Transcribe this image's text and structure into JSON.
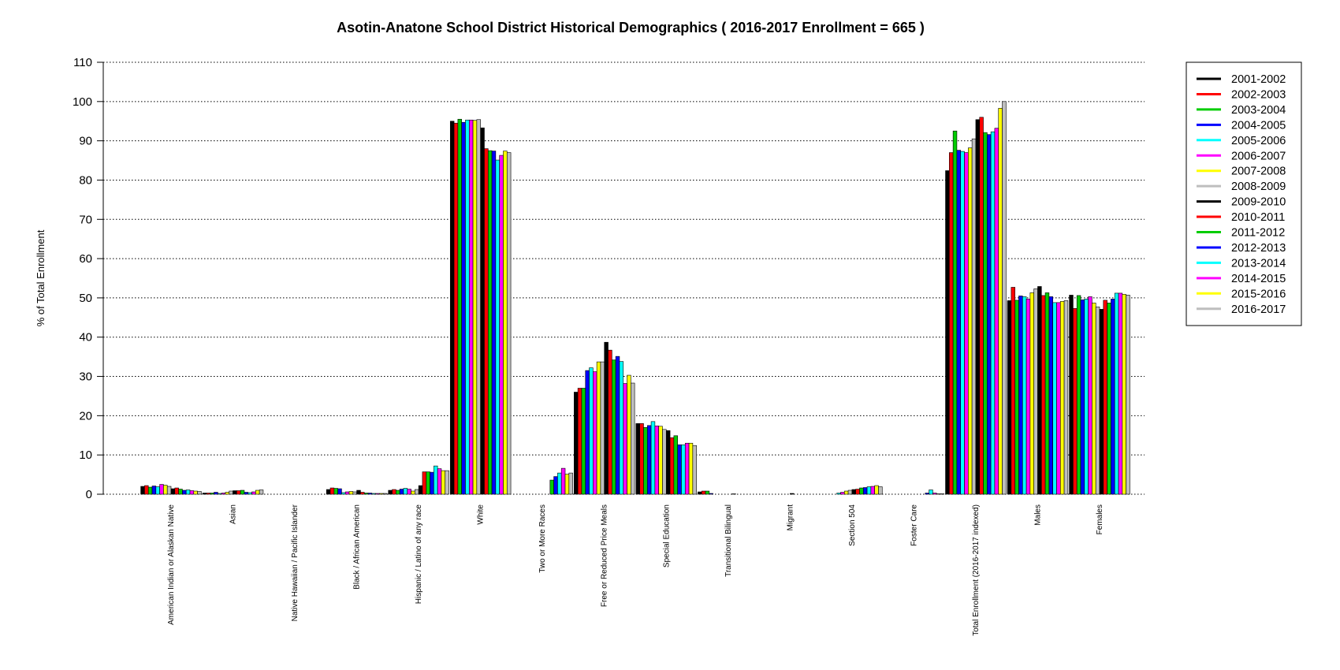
{
  "chart_data": {
    "type": "bar",
    "title": "Asotin-Anatone School District Historical Demographics  ( 2016-2017 Enrollment =  665 )",
    "xlabel": "",
    "ylabel": "% of Total Enrollment",
    "ylim": [
      0,
      110
    ],
    "yticks": [
      "0",
      "10",
      "20",
      "30",
      "40",
      "50",
      "60",
      "70",
      "80",
      "90",
      "100",
      "110"
    ],
    "grid": "horizontal dotted",
    "legend": "top-right",
    "categories": [
      "American Indian or Alaskan Native",
      "Asian",
      "Native Hawaiian / Pacific Islander",
      "Black / African American",
      "Hispanic / Latino of any race",
      "White",
      "Two or More Races",
      "Free or Reduced Price Meals",
      "Special Education",
      "Transitional Bilingual",
      "Migrant",
      "Section 504",
      "Foster Care",
      "Total Enrollment (2016-2017 indexed)",
      "Males",
      "Females"
    ],
    "series": [
      {
        "name": "2001-2002",
        "color": "#000000",
        "values": [
          2.0,
          0.3,
          0,
          1.2,
          1.0,
          95.0,
          0,
          26.0,
          18.0,
          0.6,
          0,
          0,
          0,
          82.4,
          49.3,
          50.7
        ]
      },
      {
        "name": "2002-2003",
        "color": "#ff0000",
        "values": [
          2.2,
          0.3,
          0,
          1.6,
          1.2,
          94.5,
          0,
          27.0,
          18.0,
          0.8,
          0,
          0,
          0,
          87.0,
          52.7,
          47.3
        ]
      },
      {
        "name": "2003-2004",
        "color": "#00cd00",
        "values": [
          1.8,
          0.3,
          0,
          1.5,
          1.0,
          95.5,
          0,
          27.0,
          17.0,
          0.8,
          0,
          0,
          0,
          92.5,
          49.4,
          50.6
        ]
      },
      {
        "name": "2004-2005",
        "color": "#0000ff",
        "values": [
          2.1,
          0.5,
          0,
          1.4,
          1.3,
          94.7,
          0,
          31.5,
          17.5,
          0.2,
          0,
          0,
          0,
          87.6,
          50.5,
          49.5
        ]
      },
      {
        "name": "2005-2006",
        "color": "#00ffff",
        "values": [
          1.9,
          0.2,
          0,
          0.4,
          1.5,
          95.3,
          0,
          32.2,
          18.5,
          0,
          0,
          0.3,
          0,
          87.3,
          50.3,
          49.7
        ]
      },
      {
        "name": "2006-2007",
        "color": "#ff00ff",
        "values": [
          2.5,
          0.3,
          0,
          0.6,
          1.3,
          95.3,
          0,
          31.2,
          17.4,
          0,
          0,
          0.5,
          0,
          87.0,
          49.7,
          50.3
        ]
      },
      {
        "name": "2007-2008",
        "color": "#ffff00",
        "values": [
          2.3,
          0.5,
          0,
          0.7,
          0.8,
          95.2,
          0,
          33.7,
          17.3,
          0,
          0,
          0.8,
          0,
          88.2,
          51.3,
          48.7
        ]
      },
      {
        "name": "2008-2009",
        "color": "#bebebe",
        "values": [
          2.0,
          0.8,
          0,
          0.6,
          1.2,
          95.4,
          0,
          33.7,
          16.5,
          0,
          0,
          1.0,
          0,
          90.5,
          52.3,
          47.7
        ]
      },
      {
        "name": "2009-2010",
        "color": "#000000",
        "values": [
          1.4,
          0.9,
          0,
          1.0,
          2.2,
          93.3,
          0,
          38.7,
          16.2,
          0,
          0.2,
          1.2,
          0,
          95.4,
          52.9,
          47.1
        ]
      },
      {
        "name": "2010-2011",
        "color": "#ff0000",
        "values": [
          1.6,
          0.9,
          0,
          0.5,
          5.7,
          88.0,
          0,
          36.7,
          14.4,
          0.1,
          0,
          1.3,
          0,
          96.0,
          50.6,
          49.4
        ]
      },
      {
        "name": "2011-2012",
        "color": "#00cd00",
        "values": [
          1.3,
          1.0,
          0,
          0.3,
          5.7,
          87.5,
          3.6,
          34.2,
          14.9,
          0,
          0,
          1.6,
          0,
          92.1,
          51.3,
          48.7
        ]
      },
      {
        "name": "2012-2013",
        "color": "#0000ff",
        "values": [
          1.0,
          0.5,
          0,
          0.3,
          5.6,
          87.4,
          4.5,
          35.1,
          12.6,
          0,
          0,
          1.7,
          0.3,
          91.6,
          50.3,
          49.7
        ]
      },
      {
        "name": "2013-2014",
        "color": "#00ffff",
        "values": [
          1.1,
          0.4,
          0,
          0.2,
          7.2,
          85.1,
          5.4,
          33.8,
          12.6,
          0,
          0,
          1.9,
          1.1,
          92.3,
          48.8,
          51.2
        ]
      },
      {
        "name": "2014-2015",
        "color": "#ff00ff",
        "values": [
          0.9,
          0.6,
          0,
          0.2,
          6.5,
          86.3,
          6.6,
          28.2,
          13.0,
          0,
          0,
          2.0,
          0.3,
          93.2,
          48.8,
          51.2
        ]
      },
      {
        "name": "2015-2016",
        "color": "#ffff00",
        "values": [
          0.8,
          1.0,
          0,
          0.2,
          6.0,
          87.4,
          5.1,
          30.3,
          13.0,
          0,
          0,
          2.2,
          0.1,
          98.3,
          49.1,
          50.9
        ]
      },
      {
        "name": "2016-2017",
        "color": "#bebebe",
        "values": [
          0.7,
          1.1,
          0,
          0.2,
          6.0,
          87.0,
          5.4,
          28.3,
          12.4,
          0,
          0,
          1.9,
          0.1,
          100.0,
          49.3,
          50.7
        ]
      }
    ]
  }
}
